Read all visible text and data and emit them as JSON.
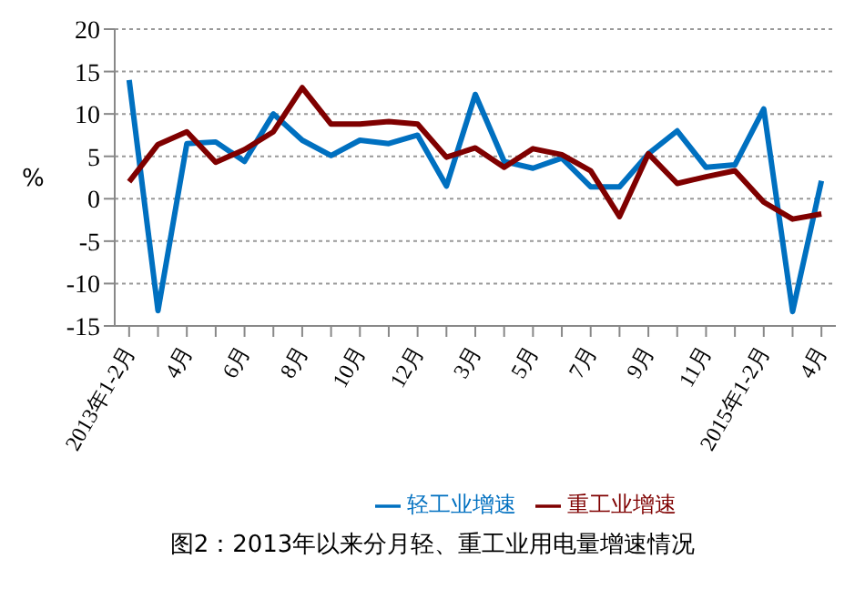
{
  "chart_data": {
    "type": "line",
    "title": "图2：2013年以来分月轻、重工业用电量增速情况",
    "ylabel": "%",
    "categories": [
      "2013年1-2月",
      null,
      "4月",
      null,
      "6月",
      null,
      "8月",
      null,
      "10月",
      null,
      "12月",
      null,
      "3月",
      null,
      "5月",
      null,
      "7月",
      null,
      "9月",
      null,
      "11月",
      null,
      "2015年1-2月",
      null,
      "4月"
    ],
    "series": [
      {
        "name": "轻工业增速",
        "color": "#0070c0",
        "values": [
          14.0,
          -13.2,
          6.5,
          6.7,
          4.4,
          10.0,
          6.9,
          5.1,
          6.9,
          6.5,
          7.5,
          1.5,
          12.3,
          4.4,
          3.6,
          4.8,
          1.4,
          1.4,
          5.3,
          8.0,
          3.7,
          4.0,
          10.6,
          -13.3,
          2.1
        ]
      },
      {
        "name": "重工业增速",
        "color": "#7f0000",
        "values": [
          2.0,
          6.4,
          7.9,
          4.3,
          5.8,
          7.9,
          13.1,
          8.8,
          8.8,
          9.1,
          8.8,
          4.9,
          6.0,
          3.7,
          5.9,
          5.2,
          3.3,
          -2.1,
          5.3,
          1.8,
          2.6,
          3.3,
          -0.4,
          -2.4,
          -1.8
        ]
      }
    ],
    "ylim": [
      -15,
      20
    ],
    "yticks": [
      -15,
      -10,
      -5,
      0,
      5,
      10,
      15,
      20
    ],
    "grid": "y",
    "legend": "bottom",
    "marker": "none",
    "line_style": "solid"
  }
}
